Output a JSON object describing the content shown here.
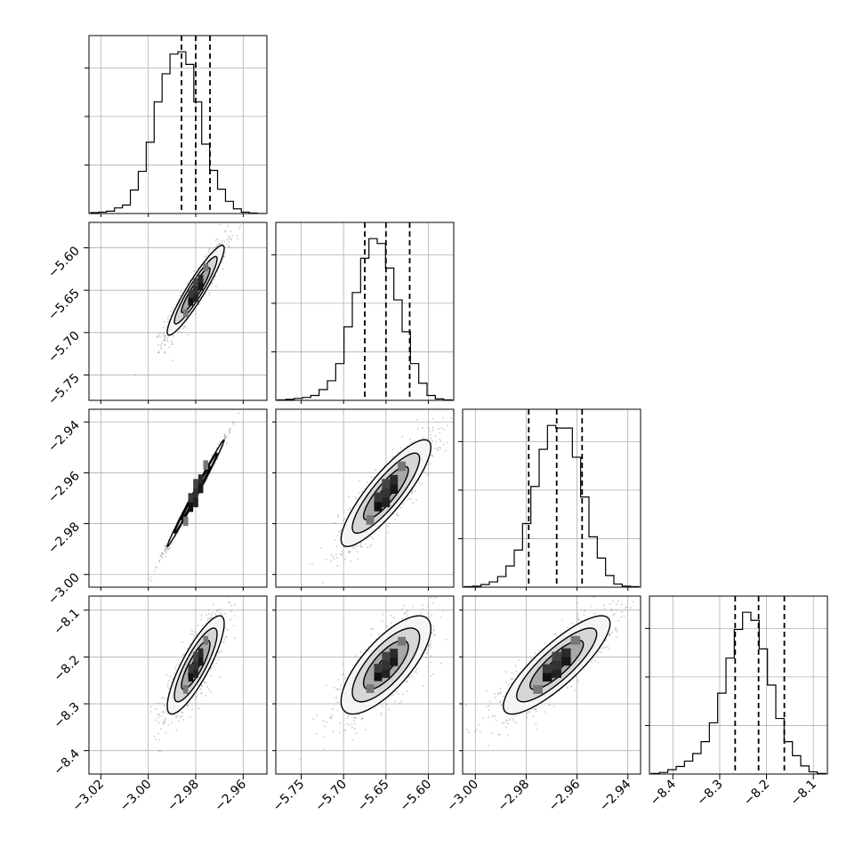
{
  "chart_data": {
    "type": "corner",
    "title": "",
    "parameters": [
      {
        "range": [
          -3.025,
          -2.95
        ],
        "median": -2.98,
        "q16": -2.986,
        "q84": -2.974,
        "ticks": [
          -3.02,
          -3.0,
          -2.98,
          -2.96
        ],
        "tick_labels": [
          "−3.02",
          "−3.00",
          "−2.98",
          "−2.96"
        ]
      },
      {
        "range": [
          -5.78,
          -5.57
        ],
        "median": -5.65,
        "q16": -5.675,
        "q84": -5.622,
        "ticks": [
          -5.75,
          -5.7,
          -5.65,
          -5.6
        ],
        "tick_labels": [
          "−5.75",
          "−5.70",
          "−5.65",
          "−5.60"
        ]
      },
      {
        "range": [
          -3.005,
          -2.935
        ],
        "median": -2.968,
        "q16": -2.979,
        "q84": -2.958,
        "ticks": [
          -3.0,
          -2.98,
          -2.96,
          -2.94
        ],
        "tick_labels": [
          "−3.00",
          "−2.98",
          "−2.96",
          "−2.94"
        ]
      },
      {
        "range": [
          -8.45,
          -8.07
        ],
        "median": -8.217,
        "q16": -8.267,
        "q84": -8.162,
        "ticks": [
          -8.4,
          -8.3,
          -8.2,
          -8.1
        ],
        "tick_labels": [
          "−8.4",
          "−8.3",
          "−8.2",
          "−8.1"
        ]
      }
    ],
    "histograms": [
      {
        "counts": [
          2,
          3,
          5,
          12,
          18,
          50,
          90,
          152,
          238,
          298,
          340,
          345,
          318,
          238,
          148,
          92,
          52,
          26,
          10,
          3,
          1,
          0
        ]
      },
      {
        "counts": [
          1,
          2,
          4,
          6,
          10,
          22,
          40,
          75,
          150,
          220,
          290,
          330,
          320,
          270,
          205,
          140,
          75,
          35,
          10,
          3,
          1
        ]
      },
      {
        "counts": [
          1,
          2,
          5,
          10,
          20,
          40,
          70,
          120,
          190,
          260,
          305,
          300,
          300,
          245,
          170,
          95,
          55,
          22,
          6,
          2,
          1
        ]
      },
      {
        "counts": [
          1,
          3,
          8,
          14,
          24,
          38,
          60,
          95,
          150,
          215,
          268,
          300,
          285,
          232,
          165,
          103,
          60,
          34,
          15,
          4,
          1
        ]
      }
    ],
    "correlations": [
      [
        1,
        0.93,
        0.995,
        0.84
      ],
      [
        0.93,
        1,
        0.86,
        0.74
      ],
      [
        0.995,
        0.86,
        1,
        0.84
      ],
      [
        0.84,
        0.74,
        0.84,
        1
      ]
    ],
    "contour_levels": [
      "0.5σ",
      "1σ",
      "1.5σ",
      "2σ"
    ],
    "grid": true
  }
}
